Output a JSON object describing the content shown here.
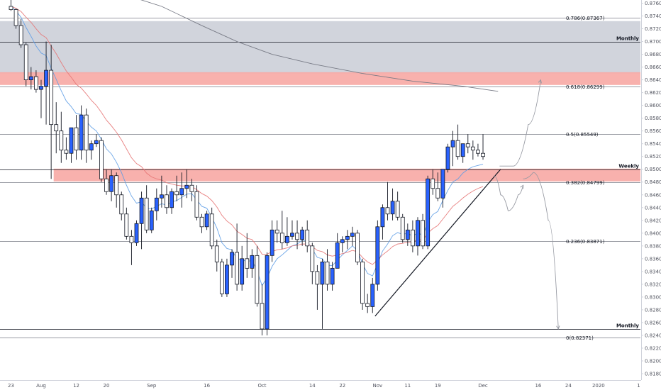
{
  "chart_data": {
    "type": "candlestick",
    "y_axis": {
      "range": [
        0.817,
        0.8765
      ],
      "ticks": [
        "0.87600",
        "0.87400",
        "0.87200",
        "0.87000",
        "0.86800",
        "0.86600",
        "0.86400",
        "0.86200",
        "0.86000",
        "0.85800",
        "0.85600",
        "0.85400",
        "0.85200",
        "0.85000",
        "0.84800",
        "0.84600",
        "0.84400",
        "0.84200",
        "0.84000",
        "0.83800",
        "0.83600",
        "0.83400",
        "0.83200",
        "0.83000",
        "0.82800",
        "0.82600",
        "0.82400",
        "0.82200",
        "0.82000",
        "0.81800"
      ]
    },
    "x_axis": {
      "ticks": [
        {
          "label": "23",
          "index": 0
        },
        {
          "label": "Aug",
          "index": 6
        },
        {
          "label": "12",
          "index": 13
        },
        {
          "label": "20",
          "index": 19
        },
        {
          "label": "Sep",
          "index": 28
        },
        {
          "label": "16",
          "index": 39
        },
        {
          "label": "Oct",
          "index": 50
        },
        {
          "label": "14",
          "index": 60
        },
        {
          "label": "22",
          "index": 66
        },
        {
          "label": "Nov",
          "index": 73
        },
        {
          "label": "11",
          "index": 79
        },
        {
          "label": "19",
          "index": 85
        },
        {
          "label": "Dec",
          "index": 94
        },
        {
          "label": "16",
          "index": 105
        },
        {
          "label": "24",
          "index": 111
        },
        {
          "label": "2020",
          "index": 117
        },
        {
          "label": "1",
          "index": 125
        }
      ]
    },
    "last_price": "0.85000",
    "levels": [
      {
        "label": "0.786(0.87367)",
        "value": 0.87367,
        "kind": "fib"
      },
      {
        "label": "0.618(0.86299)",
        "value": 0.86299,
        "kind": "fib"
      },
      {
        "label": "0.5(0.85549)",
        "value": 0.85549,
        "kind": "fib"
      },
      {
        "label": "0.382(0.84799)",
        "value": 0.84799,
        "kind": "fib"
      },
      {
        "label": "0.236(0.83871)",
        "value": 0.83871,
        "kind": "fib"
      },
      {
        "label": "0(0.82371)",
        "value": 0.82371,
        "kind": "fib"
      },
      {
        "label": "Monthly",
        "value": 0.87,
        "kind": "zone",
        "badge": "0.87000"
      },
      {
        "label": "Weekly",
        "value": 0.85,
        "kind": "zone",
        "badge": "0.85000"
      },
      {
        "label": "Monthly",
        "value": 0.825,
        "kind": "zone",
        "badge": "0.82500"
      }
    ],
    "zones": [
      {
        "from": 0.865,
        "to": 0.8732,
        "color": "#d1d4dc"
      },
      {
        "from": 0.8632,
        "to": 0.8652,
        "color": "#f7a9a4"
      },
      {
        "from": 0.8481,
        "to": 0.8501,
        "color": "#f7a9a4"
      }
    ],
    "candles": [
      {
        "o": 0.8755,
        "h": 0.877,
        "l": 0.8748,
        "c": 0.875
      },
      {
        "o": 0.875,
        "h": 0.8752,
        "l": 0.872,
        "c": 0.8725
      },
      {
        "o": 0.8725,
        "h": 0.8735,
        "l": 0.869,
        "c": 0.8695
      },
      {
        "o": 0.8695,
        "h": 0.8698,
        "l": 0.863,
        "c": 0.864
      },
      {
        "o": 0.864,
        "h": 0.866,
        "l": 0.8625,
        "c": 0.8645
      },
      {
        "o": 0.8645,
        "h": 0.8655,
        "l": 0.862,
        "c": 0.8625
      },
      {
        "o": 0.8625,
        "h": 0.864,
        "l": 0.858,
        "c": 0.863
      },
      {
        "o": 0.863,
        "h": 0.87,
        "l": 0.857,
        "c": 0.8655
      },
      {
        "o": 0.8655,
        "h": 0.8695,
        "l": 0.8485,
        "c": 0.857
      },
      {
        "o": 0.857,
        "h": 0.8605,
        "l": 0.8525,
        "c": 0.856
      },
      {
        "o": 0.856,
        "h": 0.859,
        "l": 0.851,
        "c": 0.853
      },
      {
        "o": 0.853,
        "h": 0.855,
        "l": 0.8515,
        "c": 0.8525
      },
      {
        "o": 0.8525,
        "h": 0.856,
        "l": 0.851,
        "c": 0.8565
      },
      {
        "o": 0.8565,
        "h": 0.8585,
        "l": 0.8515,
        "c": 0.853
      },
      {
        "o": 0.853,
        "h": 0.86,
        "l": 0.8515,
        "c": 0.8585
      },
      {
        "o": 0.8585,
        "h": 0.8595,
        "l": 0.851,
        "c": 0.853
      },
      {
        "o": 0.853,
        "h": 0.8545,
        "l": 0.8515,
        "c": 0.854
      },
      {
        "o": 0.854,
        "h": 0.8555,
        "l": 0.8535,
        "c": 0.8545
      },
      {
        "o": 0.8545,
        "h": 0.855,
        "l": 0.848,
        "c": 0.8485
      },
      {
        "o": 0.8485,
        "h": 0.85,
        "l": 0.846,
        "c": 0.8465
      },
      {
        "o": 0.8465,
        "h": 0.85,
        "l": 0.845,
        "c": 0.849
      },
      {
        "o": 0.849,
        "h": 0.8495,
        "l": 0.844,
        "c": 0.846
      },
      {
        "o": 0.846,
        "h": 0.8465,
        "l": 0.842,
        "c": 0.843
      },
      {
        "o": 0.843,
        "h": 0.844,
        "l": 0.839,
        "c": 0.8395
      },
      {
        "o": 0.8395,
        "h": 0.8405,
        "l": 0.835,
        "c": 0.8385
      },
      {
        "o": 0.8385,
        "h": 0.842,
        "l": 0.838,
        "c": 0.8415
      },
      {
        "o": 0.8415,
        "h": 0.8465,
        "l": 0.8375,
        "c": 0.8455
      },
      {
        "o": 0.8455,
        "h": 0.8475,
        "l": 0.84,
        "c": 0.8405
      },
      {
        "o": 0.8405,
        "h": 0.844,
        "l": 0.84,
        "c": 0.8435
      },
      {
        "o": 0.8435,
        "h": 0.847,
        "l": 0.842,
        "c": 0.8455
      },
      {
        "o": 0.8455,
        "h": 0.849,
        "l": 0.844,
        "c": 0.846
      },
      {
        "o": 0.846,
        "h": 0.8475,
        "l": 0.843,
        "c": 0.844
      },
      {
        "o": 0.844,
        "h": 0.847,
        "l": 0.843,
        "c": 0.8465
      },
      {
        "o": 0.8465,
        "h": 0.849,
        "l": 0.845,
        "c": 0.846
      },
      {
        "o": 0.846,
        "h": 0.8495,
        "l": 0.844,
        "c": 0.847
      },
      {
        "o": 0.847,
        "h": 0.85,
        "l": 0.8455,
        "c": 0.8475
      },
      {
        "o": 0.8475,
        "h": 0.8485,
        "l": 0.845,
        "c": 0.8465
      },
      {
        "o": 0.8465,
        "h": 0.8475,
        "l": 0.842,
        "c": 0.8425
      },
      {
        "o": 0.8425,
        "h": 0.843,
        "l": 0.84,
        "c": 0.841
      },
      {
        "o": 0.841,
        "h": 0.8435,
        "l": 0.8405,
        "c": 0.843
      },
      {
        "o": 0.843,
        "h": 0.844,
        "l": 0.8375,
        "c": 0.838
      },
      {
        "o": 0.838,
        "h": 0.839,
        "l": 0.834,
        "c": 0.8355
      },
      {
        "o": 0.8355,
        "h": 0.836,
        "l": 0.83,
        "c": 0.8305
      },
      {
        "o": 0.8305,
        "h": 0.836,
        "l": 0.83,
        "c": 0.835
      },
      {
        "o": 0.835,
        "h": 0.8375,
        "l": 0.833,
        "c": 0.837
      },
      {
        "o": 0.837,
        "h": 0.8415,
        "l": 0.831,
        "c": 0.832
      },
      {
        "o": 0.832,
        "h": 0.838,
        "l": 0.831,
        "c": 0.836
      },
      {
        "o": 0.836,
        "h": 0.84,
        "l": 0.833,
        "c": 0.8345
      },
      {
        "o": 0.8345,
        "h": 0.8375,
        "l": 0.833,
        "c": 0.8365
      },
      {
        "o": 0.8365,
        "h": 0.838,
        "l": 0.8285,
        "c": 0.829
      },
      {
        "o": 0.829,
        "h": 0.832,
        "l": 0.824,
        "c": 0.825
      },
      {
        "o": 0.825,
        "h": 0.837,
        "l": 0.824,
        "c": 0.8365
      },
      {
        "o": 0.8365,
        "h": 0.842,
        "l": 0.8355,
        "c": 0.8405
      },
      {
        "o": 0.8405,
        "h": 0.842,
        "l": 0.8385,
        "c": 0.84
      },
      {
        "o": 0.84,
        "h": 0.8435,
        "l": 0.8375,
        "c": 0.8385
      },
      {
        "o": 0.8385,
        "h": 0.8425,
        "l": 0.838,
        "c": 0.8395
      },
      {
        "o": 0.8395,
        "h": 0.842,
        "l": 0.839,
        "c": 0.84
      },
      {
        "o": 0.84,
        "h": 0.842,
        "l": 0.8375,
        "c": 0.839
      },
      {
        "o": 0.839,
        "h": 0.841,
        "l": 0.838,
        "c": 0.8405
      },
      {
        "o": 0.8405,
        "h": 0.842,
        "l": 0.837,
        "c": 0.838
      },
      {
        "o": 0.838,
        "h": 0.8385,
        "l": 0.832,
        "c": 0.834
      },
      {
        "o": 0.834,
        "h": 0.835,
        "l": 0.828,
        "c": 0.832
      },
      {
        "o": 0.832,
        "h": 0.836,
        "l": 0.825,
        "c": 0.8355
      },
      {
        "o": 0.8355,
        "h": 0.8375,
        "l": 0.831,
        "c": 0.832
      },
      {
        "o": 0.832,
        "h": 0.8355,
        "l": 0.831,
        "c": 0.8345
      },
      {
        "o": 0.8345,
        "h": 0.84,
        "l": 0.8345,
        "c": 0.8385
      },
      {
        "o": 0.8385,
        "h": 0.8395,
        "l": 0.837,
        "c": 0.839
      },
      {
        "o": 0.839,
        "h": 0.8405,
        "l": 0.8375,
        "c": 0.8395
      },
      {
        "o": 0.8395,
        "h": 0.841,
        "l": 0.838,
        "c": 0.84
      },
      {
        "o": 0.84,
        "h": 0.8405,
        "l": 0.835,
        "c": 0.8355
      },
      {
        "o": 0.8355,
        "h": 0.836,
        "l": 0.828,
        "c": 0.829
      },
      {
        "o": 0.829,
        "h": 0.8305,
        "l": 0.8275,
        "c": 0.8285
      },
      {
        "o": 0.8285,
        "h": 0.833,
        "l": 0.8275,
        "c": 0.832
      },
      {
        "o": 0.832,
        "h": 0.842,
        "l": 0.831,
        "c": 0.841
      },
      {
        "o": 0.841,
        "h": 0.8445,
        "l": 0.839,
        "c": 0.844
      },
      {
        "o": 0.844,
        "h": 0.848,
        "l": 0.842,
        "c": 0.843
      },
      {
        "o": 0.843,
        "h": 0.847,
        "l": 0.842,
        "c": 0.845
      },
      {
        "o": 0.845,
        "h": 0.8465,
        "l": 0.842,
        "c": 0.8425
      },
      {
        "o": 0.8425,
        "h": 0.843,
        "l": 0.8385,
        "c": 0.839
      },
      {
        "o": 0.839,
        "h": 0.8415,
        "l": 0.838,
        "c": 0.8405
      },
      {
        "o": 0.8405,
        "h": 0.842,
        "l": 0.837,
        "c": 0.838
      },
      {
        "o": 0.838,
        "h": 0.8425,
        "l": 0.8365,
        "c": 0.842
      },
      {
        "o": 0.842,
        "h": 0.843,
        "l": 0.8375,
        "c": 0.838
      },
      {
        "o": 0.838,
        "h": 0.849,
        "l": 0.8375,
        "c": 0.8485
      },
      {
        "o": 0.8485,
        "h": 0.85,
        "l": 0.846,
        "c": 0.847
      },
      {
        "o": 0.847,
        "h": 0.8495,
        "l": 0.845,
        "c": 0.8455
      },
      {
        "o": 0.8455,
        "h": 0.85,
        "l": 0.844,
        "c": 0.85
      },
      {
        "o": 0.85,
        "h": 0.854,
        "l": 0.8495,
        "c": 0.8535
      },
      {
        "o": 0.8535,
        "h": 0.856,
        "l": 0.8505,
        "c": 0.8545
      },
      {
        "o": 0.8545,
        "h": 0.857,
        "l": 0.8515,
        "c": 0.852
      },
      {
        "o": 0.852,
        "h": 0.854,
        "l": 0.851,
        "c": 0.854
      },
      {
        "o": 0.854,
        "h": 0.8555,
        "l": 0.8525,
        "c": 0.8535
      },
      {
        "o": 0.8535,
        "h": 0.8545,
        "l": 0.8515,
        "c": 0.853
      },
      {
        "o": 0.853,
        "h": 0.854,
        "l": 0.852,
        "c": 0.8525
      },
      {
        "o": 0.8525,
        "h": 0.8555,
        "l": 0.8515,
        "c": 0.852
      }
    ],
    "moving_averages": [
      {
        "color": "#5c9ce6",
        "values": [
          0.8755,
          0.8748,
          0.8738,
          0.8722,
          0.8708,
          0.8693,
          0.8682,
          0.8678,
          0.8658,
          0.8641,
          0.8623,
          0.8607,
          0.8598,
          0.8587,
          0.8586,
          0.8575,
          0.8566,
          0.856,
          0.8547,
          0.8532,
          0.8524,
          0.8511,
          0.8495,
          0.8475,
          0.8458,
          0.8447,
          0.8449,
          0.8439,
          0.8438,
          0.8442,
          0.8446,
          0.8444,
          0.8449,
          0.8451,
          0.8456,
          0.8461,
          0.8462,
          0.8452,
          0.8442,
          0.8439,
          0.8425,
          0.8408,
          0.8385,
          0.8376,
          0.8374,
          0.8359,
          0.8359,
          0.8355,
          0.8358,
          0.8341,
          0.8318,
          0.833,
          0.8348,
          0.836,
          0.8366,
          0.8373,
          0.838,
          0.8383,
          0.8389,
          0.8387,
          0.8375,
          0.8362,
          0.836,
          0.835,
          0.8349,
          0.8358,
          0.8366,
          0.8373,
          0.838,
          0.8373,
          0.8352,
          0.8337,
          0.8333,
          0.8352,
          0.8372,
          0.8383,
          0.8396,
          0.8401,
          0.8398,
          0.84,
          0.8395,
          0.8401,
          0.8396,
          0.8417,
          0.8429,
          0.8434,
          0.8451,
          0.8467,
          0.848,
          0.8485,
          0.8494,
          0.85,
          0.8504,
          0.8506,
          0.8508
        ]
      },
      {
        "color": "#e57373",
        "values": [
          0.8755,
          0.8752,
          0.8747,
          0.8738,
          0.873,
          0.872,
          0.8711,
          0.8706,
          0.8693,
          0.8681,
          0.8667,
          0.8654,
          0.8644,
          0.8633,
          0.8627,
          0.8618,
          0.8608,
          0.86,
          0.8589,
          0.8577,
          0.8568,
          0.8558,
          0.8546,
          0.8532,
          0.8518,
          0.8509,
          0.8504,
          0.8494,
          0.8488,
          0.8485,
          0.8483,
          0.8479,
          0.8477,
          0.8475,
          0.8474,
          0.8474,
          0.8473,
          0.8468,
          0.8462,
          0.8458,
          0.8451,
          0.8441,
          0.8428,
          0.8419,
          0.8413,
          0.8403,
          0.8398,
          0.8392,
          0.839,
          0.838,
          0.8367,
          0.8367,
          0.8371,
          0.8374,
          0.8375,
          0.8377,
          0.838,
          0.8381,
          0.8383,
          0.8383,
          0.8379,
          0.8373,
          0.8371,
          0.8366,
          0.8364,
          0.8366,
          0.8368,
          0.837,
          0.8373,
          0.8371,
          0.8362,
          0.8355,
          0.8351,
          0.8358,
          0.8366,
          0.8372,
          0.8379,
          0.8383,
          0.8384,
          0.8386,
          0.8386,
          0.839,
          0.8389,
          0.84,
          0.8407,
          0.8412,
          0.8422,
          0.8432,
          0.8442,
          0.8448,
          0.8455,
          0.8461,
          0.8466,
          0.847,
          0.8473
        ]
      }
    ],
    "long_ma": {
      "color": "#787b86",
      "values": [
        [
          0,
          0.8805
        ],
        [
          10,
          0.88
        ],
        [
          20,
          0.878
        ],
        [
          30,
          0.8755
        ],
        [
          38,
          0.8725
        ],
        [
          45,
          0.87
        ],
        [
          52,
          0.868
        ],
        [
          60,
          0.8665
        ],
        [
          70,
          0.865
        ],
        [
          80,
          0.8638
        ],
        [
          90,
          0.863
        ],
        [
          97,
          0.8622
        ]
      ]
    },
    "trendline": [
      [
        72.5,
        0.827
      ],
      [
        97.5,
        0.85
      ]
    ],
    "projections": [
      [
        [
          97.3,
          0.8505
        ],
        [
          100,
          0.8505
        ],
        [
          103,
          0.857
        ],
        [
          105.5,
          0.864
        ]
      ],
      [
        [
          96.2,
          0.849
        ],
        [
          97.5,
          0.846
        ],
        [
          99,
          0.8435
        ],
        [
          101,
          0.846
        ],
        [
          102,
          0.8475
        ]
      ],
      [
        [
          102,
          0.8485
        ],
        [
          104,
          0.8495
        ],
        [
          107,
          0.842
        ],
        [
          109,
          0.825
        ]
      ]
    ]
  }
}
